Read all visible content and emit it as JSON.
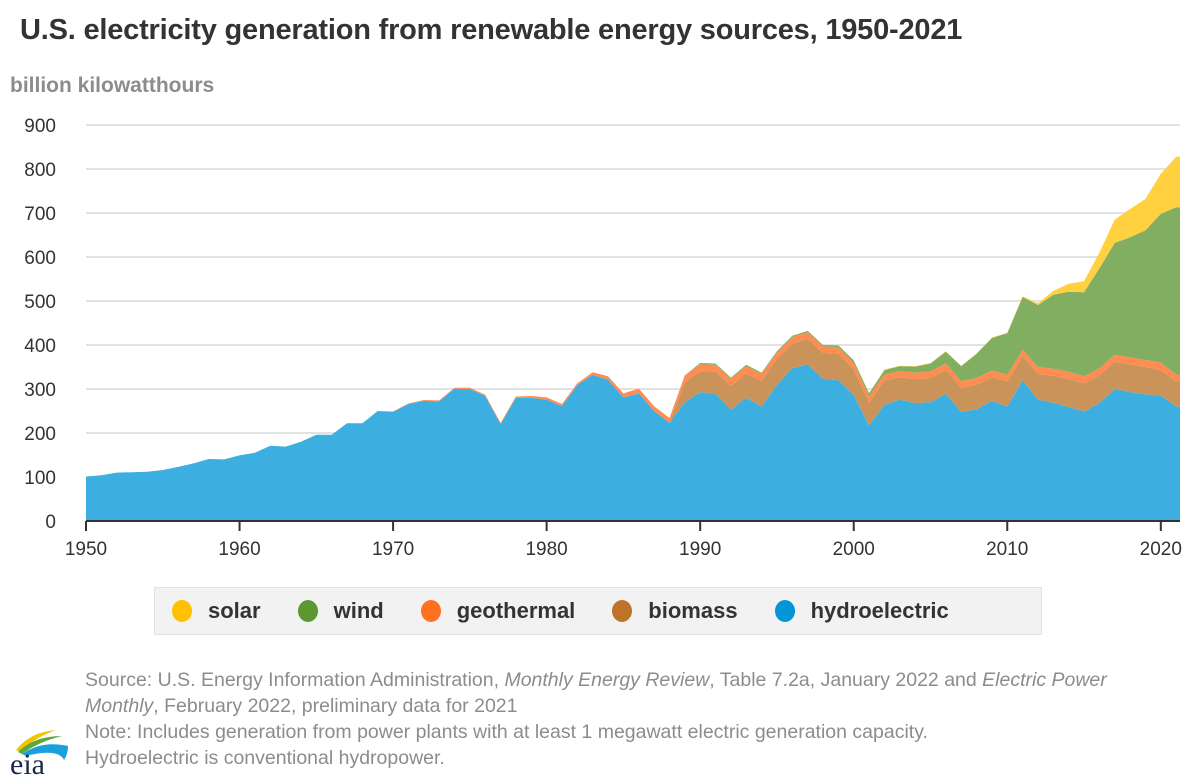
{
  "title": "U.S. electricity generation from renewable energy sources, 1950-2021",
  "unit_label": "billion kilowatthours",
  "colors": {
    "solar": "#ffd040",
    "wind": "#82ae62",
    "geothermal": "#ff8c50",
    "biomass": "#c9935a",
    "hydroelectric": "#3daee0",
    "gridline": "#e2e2e2",
    "axis": "#333333"
  },
  "legend": [
    {
      "key": "solar",
      "label": "solar",
      "color": "#ffc000"
    },
    {
      "key": "wind",
      "label": "wind",
      "color": "#5d9732"
    },
    {
      "key": "geothermal",
      "label": "geothermal",
      "color": "#ff7020"
    },
    {
      "key": "biomass",
      "label": "biomass",
      "color": "#bd732a"
    },
    {
      "key": "hydroelectric",
      "label": "hydroelectric",
      "color": "#0096d7"
    }
  ],
  "source": {
    "prefix": "Source: U.S. Energy Information Administration, ",
    "pub1": "Monthly Energy Review",
    "mid": ", Table 7.2a, January 2022 and ",
    "pub2": "Electric Power Monthly",
    "suffix": ", February 2022, preliminary data for 2021",
    "note1": "Note: Includes generation from power plants with at least 1 megawatt electric generation capacity.",
    "note2": "Hydroelectric is conventional hydropower."
  },
  "logo_text": "eia",
  "chart_data": {
    "type": "area",
    "stacked": true,
    "title": "U.S. electricity generation from renewable energy sources, 1950-2021",
    "xlabel": "",
    "ylabel": "billion kilowatthours",
    "xlim": [
      1950,
      2021
    ],
    "ylim": [
      0,
      900
    ],
    "x_ticks": [
      1950,
      1960,
      1970,
      1980,
      1990,
      2000,
      2010,
      2020
    ],
    "y_ticks": [
      0,
      100,
      200,
      300,
      400,
      500,
      600,
      700,
      800,
      900
    ],
    "grid": true,
    "legend_position": "bottom",
    "x": [
      1950,
      1951,
      1952,
      1953,
      1954,
      1955,
      1956,
      1957,
      1958,
      1959,
      1960,
      1961,
      1962,
      1963,
      1964,
      1965,
      1966,
      1967,
      1968,
      1969,
      1970,
      1971,
      1972,
      1973,
      1974,
      1975,
      1976,
      1977,
      1978,
      1979,
      1980,
      1981,
      1982,
      1983,
      1984,
      1985,
      1986,
      1987,
      1988,
      1989,
      1990,
      1991,
      1992,
      1993,
      1994,
      1995,
      1996,
      1997,
      1998,
      1999,
      2000,
      2001,
      2002,
      2003,
      2004,
      2005,
      2006,
      2007,
      2008,
      2009,
      2010,
      2011,
      2012,
      2013,
      2014,
      2015,
      2016,
      2017,
      2018,
      2019,
      2020,
      2021
    ],
    "series": [
      {
        "name": "hydroelectric",
        "values": [
          101,
          104,
          110,
          111,
          112,
          116,
          123,
          131,
          141,
          140,
          149,
          155,
          171,
          169,
          180,
          196,
          196,
          222,
          222,
          250,
          248,
          266,
          273,
          272,
          301,
          300,
          284,
          220,
          280,
          280,
          276,
          261,
          309,
          332,
          321,
          281,
          290,
          250,
          223,
          270,
          293,
          289,
          253,
          280,
          260,
          310,
          347,
          356,
          323,
          320,
          286,
          217,
          264,
          276,
          268,
          270,
          289,
          248,
          254,
          273,
          260,
          319,
          276,
          269,
          259,
          249,
          268,
          300,
          293,
          288,
          285,
          260
        ]
      },
      {
        "name": "biomass",
        "values": [
          0,
          0,
          0,
          0,
          0,
          0,
          0,
          0,
          0,
          0,
          0,
          0,
          0,
          0,
          0,
          0,
          0,
          0,
          0,
          0,
          0,
          0,
          0,
          0,
          0,
          0,
          0,
          0,
          0,
          0,
          0,
          0,
          0,
          0,
          0,
          0,
          0,
          0,
          0,
          46,
          47,
          50,
          54,
          55,
          58,
          59,
          56,
          58,
          59,
          60,
          59,
          52,
          55,
          51,
          54,
          55,
          54,
          55,
          56,
          54,
          57,
          55,
          58,
          61,
          64,
          64,
          63,
          62,
          63,
          62,
          58,
          57
        ]
      },
      {
        "name": "geothermal",
        "values": [
          0,
          0,
          0,
          0,
          0,
          0,
          0,
          0,
          0,
          0,
          0,
          0,
          0,
          0,
          0,
          0,
          0,
          0,
          0,
          0,
          1,
          1,
          2,
          2,
          2,
          3,
          3,
          3,
          3,
          4,
          5,
          5,
          4,
          6,
          8,
          9,
          11,
          11,
          11,
          15,
          16,
          16,
          16,
          17,
          16,
          14,
          15,
          15,
          15,
          15,
          14,
          14,
          14,
          14,
          15,
          15,
          15,
          15,
          15,
          15,
          15,
          15,
          16,
          16,
          16,
          16,
          16,
          16,
          16,
          16,
          17,
          16
        ]
      },
      {
        "name": "wind",
        "values": [
          0,
          0,
          0,
          0,
          0,
          0,
          0,
          0,
          0,
          0,
          0,
          0,
          0,
          0,
          0,
          0,
          0,
          0,
          0,
          0,
          0,
          0,
          0,
          0,
          0,
          0,
          0,
          0,
          0,
          0,
          0,
          0,
          0,
          0,
          0,
          0,
          0,
          0,
          0,
          0,
          3,
          3,
          3,
          3,
          3,
          3,
          3,
          3,
          3,
          4,
          6,
          7,
          10,
          11,
          14,
          18,
          27,
          34,
          55,
          74,
          95,
          120,
          141,
          168,
          182,
          191,
          227,
          254,
          273,
          295,
          338,
          380
        ]
      },
      {
        "name": "solar",
        "values": [
          0,
          0,
          0,
          0,
          0,
          0,
          0,
          0,
          0,
          0,
          0,
          0,
          0,
          0,
          0,
          0,
          0,
          0,
          0,
          0,
          0,
          0,
          0,
          0,
          0,
          0,
          0,
          0,
          0,
          0,
          0,
          0,
          0,
          0,
          0,
          0,
          0,
          0,
          0,
          0,
          0,
          0,
          0,
          0,
          0,
          0,
          0,
          0,
          0,
          0,
          0,
          1,
          1,
          1,
          1,
          1,
          1,
          1,
          1,
          1,
          1,
          2,
          4,
          9,
          18,
          25,
          36,
          53,
          64,
          71,
          91,
          115
        ]
      }
    ]
  }
}
